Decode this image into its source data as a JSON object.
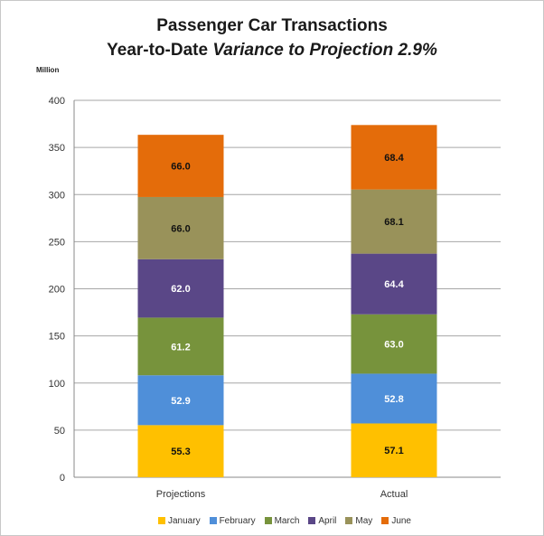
{
  "chart_data": {
    "type": "bar",
    "stacked": true,
    "title_line1": "Passenger Car Transactions",
    "title_line2_prefix": "Year-to-Date ",
    "title_line2_emphasis": "Variance to Projection 2.9%",
    "unit_label": "Million",
    "categories": [
      "Projections",
      "Actual"
    ],
    "ylim": [
      0,
      400
    ],
    "yticks": [
      0,
      50,
      100,
      150,
      200,
      250,
      300,
      350,
      400
    ],
    "grid": true,
    "legend_position": "bottom",
    "series": [
      {
        "name": "January",
        "color": "#ffc000",
        "values": [
          55.3,
          57.1
        ],
        "labels": [
          "55.3",
          "57.1"
        ],
        "label_color": "#111111"
      },
      {
        "name": "February",
        "color": "#4f8fd9",
        "values": [
          52.9,
          52.8
        ],
        "labels": [
          "52.9",
          "52.8"
        ],
        "label_color": "#ffffff"
      },
      {
        "name": "March",
        "color": "#77933c",
        "values": [
          61.2,
          63.0
        ],
        "labels": [
          "61.2",
          "63.0"
        ],
        "label_color": "#ffffff"
      },
      {
        "name": "April",
        "color": "#5a4787",
        "values": [
          62.0,
          64.4
        ],
        "labels": [
          "62.0",
          "64.4"
        ],
        "label_color": "#ffffff"
      },
      {
        "name": "May",
        "color": "#99925a",
        "values": [
          66.0,
          68.1
        ],
        "labels": [
          "66.0",
          "68.1"
        ],
        "label_color": "#111111"
      },
      {
        "name": "June",
        "color": "#e46c0a",
        "values": [
          66.0,
          68.4
        ],
        "labels": [
          "66.0",
          "68.4"
        ],
        "label_color": "#111111"
      }
    ]
  }
}
